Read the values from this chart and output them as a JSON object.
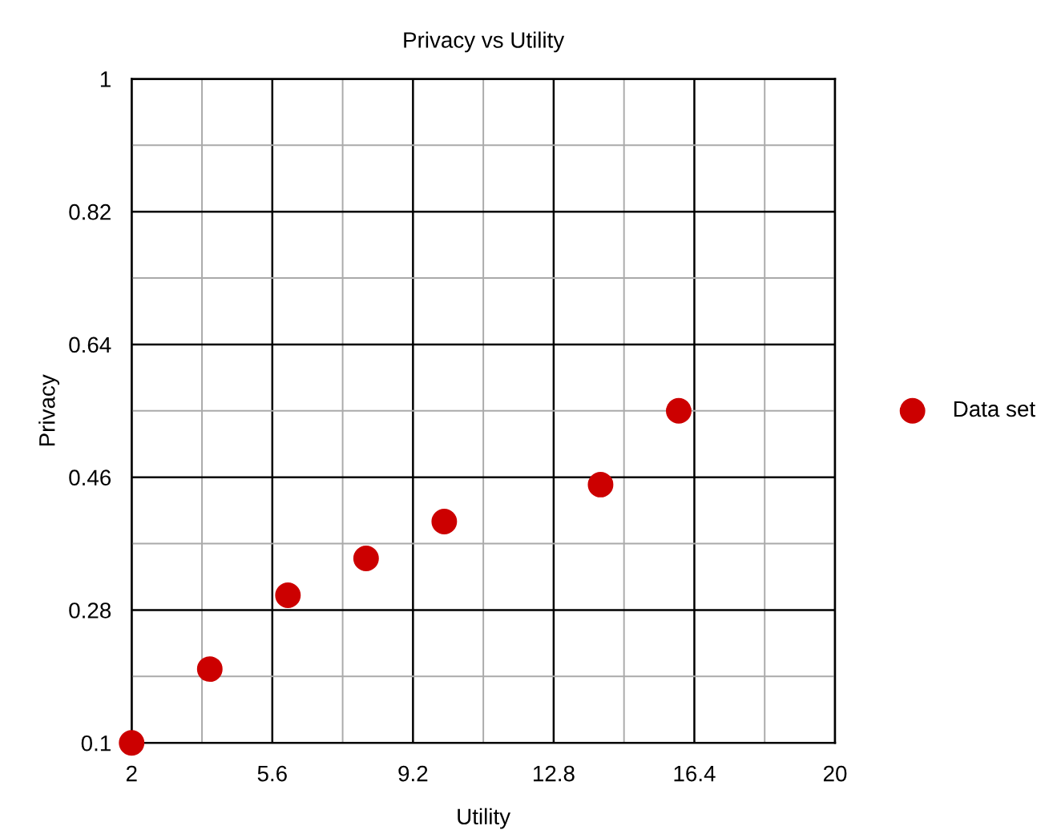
{
  "chart_data": {
    "type": "scatter",
    "title": "Privacy vs Utility",
    "xlabel": "Utility",
    "ylabel": "Privacy",
    "xlim": [
      2,
      20
    ],
    "ylim": [
      0.1,
      1
    ],
    "xticks": [
      2,
      {
        "value": 3.8,
        "label": null
      },
      5.6,
      {
        "value": 7.4,
        "label": null
      },
      9.2,
      {
        "value": 11,
        "label": null
      },
      12.8,
      {
        "value": 14.6,
        "label": null
      },
      16.4,
      {
        "value": 18.2,
        "label": null
      },
      20
    ],
    "yticks": [
      0.1,
      {
        "value": 0.19,
        "label": null
      },
      0.28,
      {
        "value": 0.37,
        "label": null
      },
      0.46,
      {
        "value": 0.55,
        "label": null
      },
      0.64,
      {
        "value": 0.73,
        "label": null
      },
      0.82,
      {
        "value": 0.91,
        "label": null
      },
      1
    ],
    "grid": true,
    "legend": "right",
    "marker": "circle",
    "series": [
      {
        "name": "Data set",
        "color": "#cc0000",
        "x": [
          2,
          4,
          6,
          8,
          10,
          14,
          16
        ],
        "values": [
          0.1,
          0.2,
          0.3,
          0.35,
          0.4,
          0.45,
          0.55
        ]
      }
    ]
  }
}
